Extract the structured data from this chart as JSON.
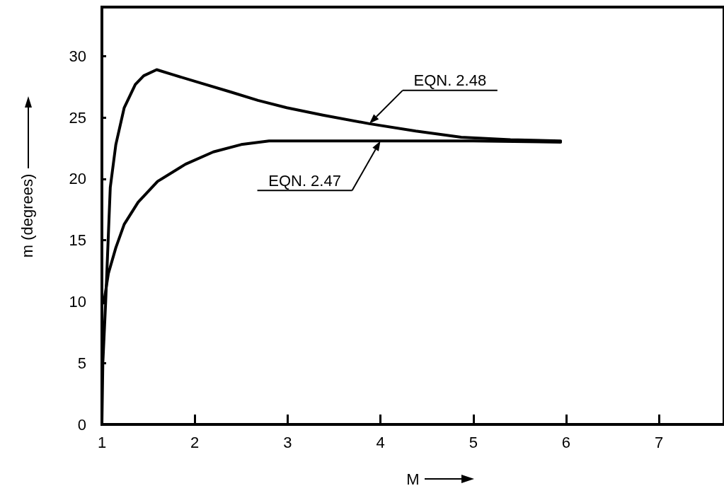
{
  "chart_data": {
    "type": "line",
    "xlabel": "M",
    "ylabel": "m (degrees)",
    "xlim": [
      1,
      7.7
    ],
    "xticks": [
      1,
      2,
      3,
      4,
      5,
      6,
      7
    ],
    "ylim": [
      0,
      34
    ],
    "yticks": [
      0,
      5,
      10,
      15,
      20,
      25,
      30
    ],
    "grid": false,
    "series": [
      {
        "name": "EQN. 2.48",
        "color": "#000000",
        "x": [
          1,
          1.01,
          1.04,
          1.09,
          1.15,
          1.24,
          1.36,
          1.45,
          1.59,
          1.76,
          2.07,
          2.38,
          2.68,
          2.99,
          3.38,
          3.88,
          4.38,
          4.87,
          5.4,
          5.94
        ],
        "values": [
          0,
          5,
          9.9,
          19.3,
          22.8,
          25.8,
          27.7,
          28.4,
          28.9,
          28.5,
          27.8,
          27.1,
          26.4,
          25.8,
          25.2,
          24.5,
          23.9,
          23.4,
          23.2,
          23.1
        ]
      },
      {
        "name": "EQN. 2.47",
        "color": "#000000",
        "x": [
          1.02,
          1.07,
          1.15,
          1.24,
          1.39,
          1.6,
          1.9,
          2.2,
          2.5,
          2.8,
          3.3,
          4,
          5,
          5.94
        ],
        "values": [
          9.9,
          12.3,
          14.4,
          16.3,
          18.1,
          19.8,
          21.2,
          22.2,
          22.8,
          23.1,
          23.1,
          23.1,
          23.1,
          23.0
        ]
      }
    ]
  }
}
